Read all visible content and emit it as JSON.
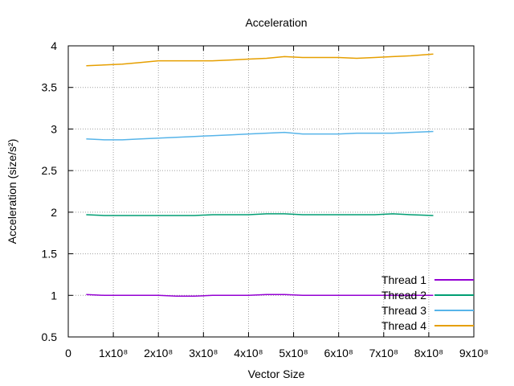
{
  "chart_data": {
    "type": "line",
    "title": "Acceleration",
    "xlabel": "Vector Size",
    "ylabel": "Acceleration (size/s²)",
    "xlim": [
      0,
      900000000
    ],
    "ylim": [
      0.5,
      4
    ],
    "grid": true,
    "legend_position": "bottom-right",
    "x_ticks": [
      {
        "value": 0,
        "label": "0"
      },
      {
        "value": 100000000,
        "label": "1x10⁸"
      },
      {
        "value": 200000000,
        "label": "2x10⁸"
      },
      {
        "value": 300000000,
        "label": "3x10⁸"
      },
      {
        "value": 400000000,
        "label": "4x10⁸"
      },
      {
        "value": 500000000,
        "label": "5x10⁸"
      },
      {
        "value": 600000000,
        "label": "6x10⁸"
      },
      {
        "value": 700000000,
        "label": "7x10⁸"
      },
      {
        "value": 800000000,
        "label": "8x10⁸"
      },
      {
        "value": 900000000,
        "label": "9x10⁸"
      }
    ],
    "y_ticks": [
      {
        "value": 0.5,
        "label": "0.5"
      },
      {
        "value": 1,
        "label": "1"
      },
      {
        "value": 1.5,
        "label": "1.5"
      },
      {
        "value": 2,
        "label": "2"
      },
      {
        "value": 2.5,
        "label": "2.5"
      },
      {
        "value": 3,
        "label": "3"
      },
      {
        "value": 3.5,
        "label": "3.5"
      },
      {
        "value": 4,
        "label": "4"
      }
    ],
    "x": [
      40000000,
      80000000,
      120000000,
      160000000,
      200000000,
      240000000,
      280000000,
      320000000,
      360000000,
      400000000,
      440000000,
      480000000,
      520000000,
      560000000,
      600000000,
      640000000,
      680000000,
      720000000,
      760000000,
      810000000
    ],
    "series": [
      {
        "name": "Thread 1",
        "color": "#9400d3",
        "values": [
          1.01,
          1.0,
          1.0,
          1.0,
          1.0,
          0.99,
          0.99,
          1.0,
          1.0,
          1.0,
          1.01,
          1.01,
          1.0,
          1.0,
          1.0,
          1.0,
          1.0,
          1.0,
          1.0,
          1.0
        ]
      },
      {
        "name": "Thread 2",
        "color": "#009e73",
        "values": [
          1.97,
          1.96,
          1.96,
          1.96,
          1.96,
          1.96,
          1.96,
          1.97,
          1.97,
          1.97,
          1.98,
          1.98,
          1.97,
          1.97,
          1.97,
          1.97,
          1.97,
          1.98,
          1.97,
          1.96
        ]
      },
      {
        "name": "Thread 3",
        "color": "#56b4e9",
        "values": [
          2.88,
          2.87,
          2.87,
          2.88,
          2.89,
          2.9,
          2.91,
          2.92,
          2.93,
          2.94,
          2.95,
          2.96,
          2.94,
          2.94,
          2.94,
          2.95,
          2.95,
          2.95,
          2.96,
          2.97
        ]
      },
      {
        "name": "Thread 4",
        "color": "#e69f00",
        "values": [
          3.76,
          3.77,
          3.78,
          3.8,
          3.82,
          3.82,
          3.82,
          3.82,
          3.83,
          3.84,
          3.85,
          3.87,
          3.86,
          3.86,
          3.86,
          3.85,
          3.86,
          3.87,
          3.88,
          3.9
        ]
      }
    ]
  }
}
